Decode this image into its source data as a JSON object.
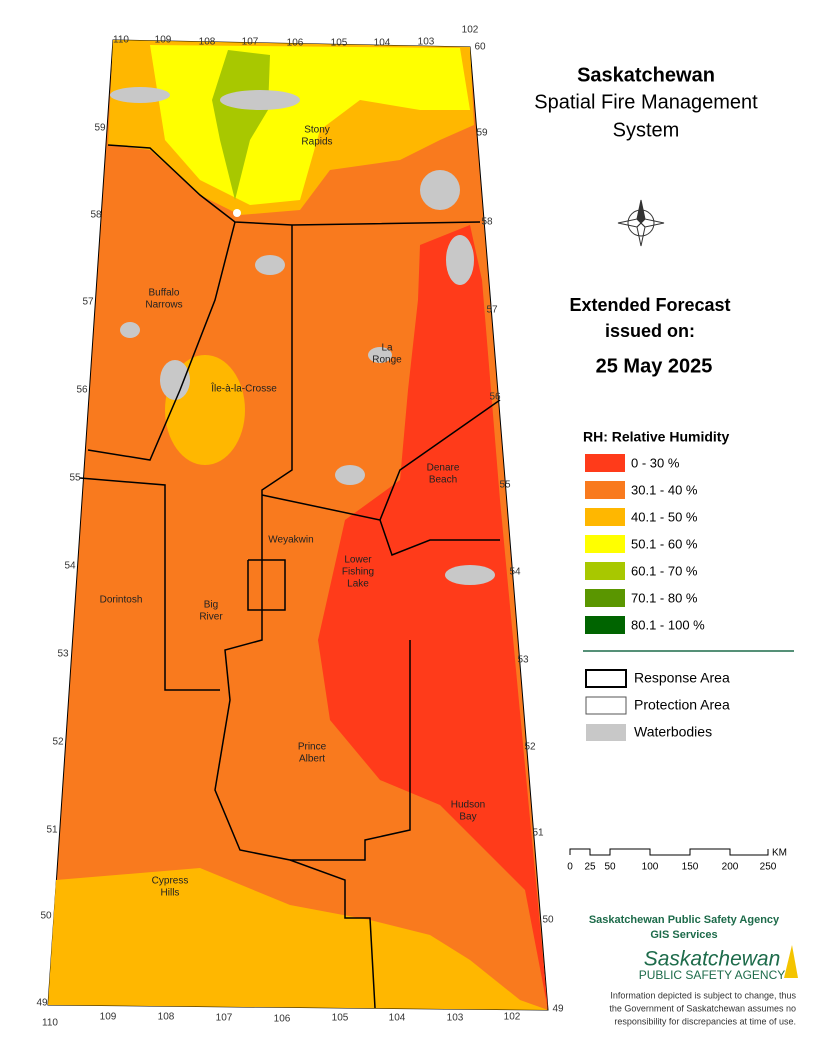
{
  "title": [
    "Saskatchewan",
    "Spatial Fire Management",
    "System"
  ],
  "forecast": {
    "heading": [
      "Extended Forecast",
      "issued on:"
    ],
    "date": "25 May 2025"
  },
  "legend": {
    "title": "RH: Relative Humidity",
    "items": [
      {
        "label": "0 - 30 %",
        "color": "#ff3b1a"
      },
      {
        "label": "30.1 - 40 %",
        "color": "#f97a1e"
      },
      {
        "label": "40.1 - 50 %",
        "color": "#ffb700"
      },
      {
        "label": "50.1 - 60 %",
        "color": "#ffff00"
      },
      {
        "label": "60.1 - 70 %",
        "color": "#a8c800"
      },
      {
        "label": "70.1 - 80 %",
        "color": "#5a9600"
      },
      {
        "label": "80.1 - 100 %",
        "color": "#006400"
      }
    ]
  },
  "map_legend": [
    "Response Area",
    "Protection Area",
    "Waterbodies"
  ],
  "scale_bar": {
    "labels": [
      "0",
      "25",
      "50",
      "100",
      "150",
      "200",
      "250"
    ],
    "unit": "KM"
  },
  "agency": {
    "name": "Saskatchewan Public Safety Agency",
    "unit": "GIS  Services",
    "logo": [
      "Saskatchewan",
      "PUBLIC SAFETY AGENCY"
    ]
  },
  "disclaimer": [
    "Information depicted is subject to change, thus",
    "the Government of Saskatchewan assumes no",
    "responsibility for discrepancies at time of use."
  ],
  "places": [
    [
      "Stony",
      "Rapids"
    ],
    [
      "Buffalo",
      "Narrows"
    ],
    [
      "La",
      "Ronge"
    ],
    [
      "Île-à-la-Crosse"
    ],
    [
      "Denare",
      "Beach"
    ],
    [
      "Weyakwin"
    ],
    [
      "Lower",
      "Fishing",
      "Lake"
    ],
    [
      "Dorintosh"
    ],
    [
      "Big",
      "River"
    ],
    [
      "Prince",
      "Albert"
    ],
    [
      "Hudson",
      "Bay"
    ],
    [
      "Cypress",
      "Hills"
    ]
  ],
  "graticule": {
    "top": [
      110,
      109,
      108,
      107,
      106,
      105,
      104,
      103,
      102,
      60
    ],
    "bottom": [
      110,
      109,
      108,
      107,
      106,
      105,
      104,
      103,
      102
    ],
    "left": [
      59,
      58,
      57,
      56,
      55,
      54,
      53,
      52,
      51,
      50,
      49
    ],
    "right": [
      59,
      58,
      57,
      56,
      55,
      54,
      53,
      52,
      51,
      50,
      49
    ]
  }
}
